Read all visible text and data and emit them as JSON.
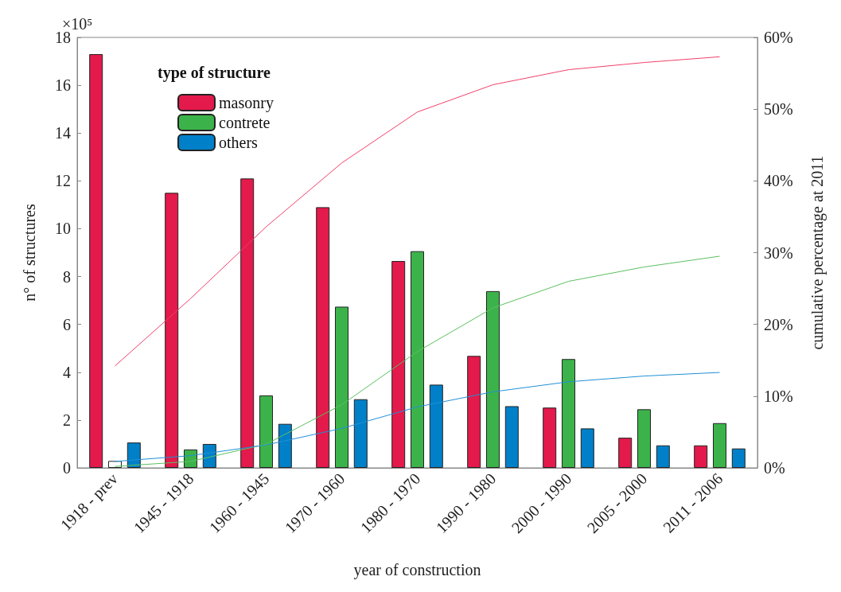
{
  "chart_data": {
    "type": "bar",
    "xlabel": "year of construction",
    "ylabel": "n° of structures",
    "y2label": "cumulative percentage at 2011",
    "legend_title": "type of structure",
    "legend": "top left",
    "grid": false,
    "marker": "none",
    "annotations": [
      "×10⁵"
    ],
    "categories": [
      "1918 - prev",
      "1945 - 1918",
      "1960 - 1945",
      "1970 - 1960",
      "1980 - 1970",
      "1990 - 1980",
      "2000 - 1990",
      "2005 - 2000",
      "2011 - 2006"
    ],
    "series": [
      {
        "name": "masonry",
        "color": "#e31a4b",
        "values": [
          17.3,
          11.5,
          12.1,
          10.9,
          8.65,
          4.68,
          2.52,
          1.26,
          0.94
        ]
      },
      {
        "name": "contrete",
        "color": "#3cb34a",
        "colors": [
          "#ffffff",
          "#3cb34a",
          "#3cb34a",
          "#3cb34a",
          "#3cb34a",
          "#3cb34a",
          "#3cb34a",
          "#3cb34a",
          "#3cb34a"
        ],
        "values": [
          0.29,
          0.77,
          3.03,
          6.74,
          9.06,
          7.39,
          4.55,
          2.45,
          1.87
        ]
      },
      {
        "name": "others",
        "color": "#0080c8",
        "values": [
          1.06,
          1.0,
          1.84,
          2.87,
          3.48,
          2.58,
          1.65,
          0.94,
          0.81
        ]
      },
      {
        "type": "line",
        "axis": "y2",
        "color": "#f0406a",
        "values": [
          14.2,
          23.6,
          33.6,
          42.5,
          49.6,
          53.4,
          55.5,
          56.5,
          57.3
        ]
      },
      {
        "type": "line",
        "axis": "y2",
        "color": "#5cc060",
        "values": [
          0.2,
          0.9,
          3.3,
          8.8,
          16.2,
          22.3,
          26.0,
          28.0,
          29.5
        ]
      },
      {
        "type": "line",
        "axis": "y2",
        "color": "#2090d8",
        "values": [
          0.9,
          1.7,
          3.2,
          5.5,
          8.5,
          10.6,
          12.0,
          12.8,
          13.3
        ]
      }
    ],
    "ylim": [
      0,
      18
    ],
    "yticks": [
      0,
      2,
      4,
      6,
      8,
      10,
      12,
      14,
      16,
      18
    ],
    "y2lim": [
      0,
      60
    ],
    "y2ticks": [
      {
        "value": 0,
        "label": "0%"
      },
      {
        "value": 10,
        "label": "10%"
      },
      {
        "value": 20,
        "label": "20%"
      },
      {
        "value": 30,
        "label": "30%"
      },
      {
        "value": 40,
        "label": "40%"
      },
      {
        "value": 50,
        "label": "50%"
      },
      {
        "value": 60,
        "label": "60%"
      }
    ]
  }
}
